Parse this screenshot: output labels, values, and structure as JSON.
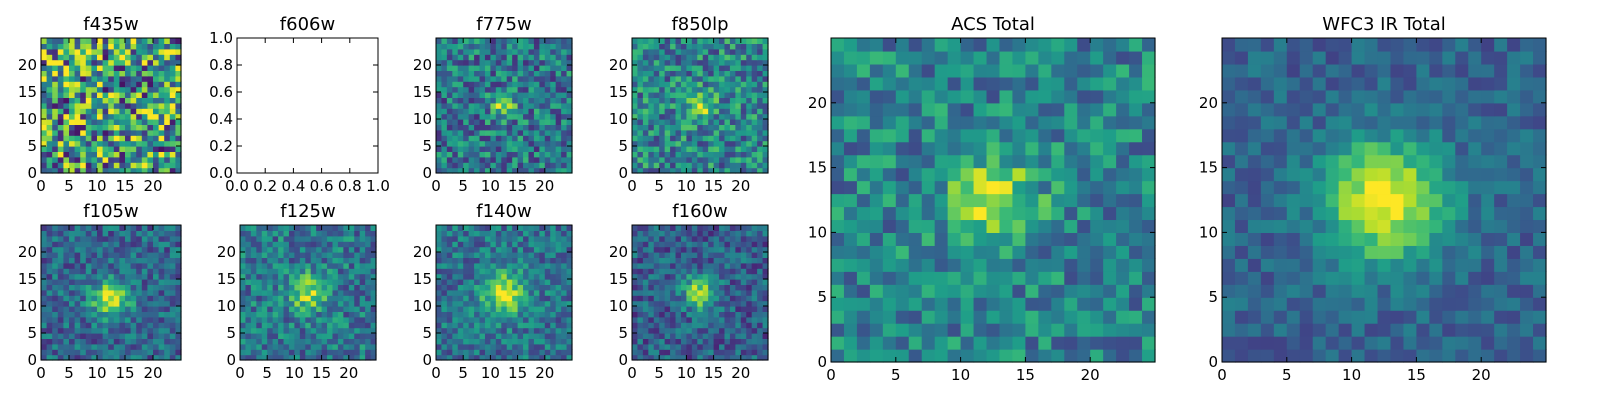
{
  "figure": {
    "background": "#ffffff"
  },
  "chart_data": [
    {
      "type": "heatmap",
      "title": "f435w",
      "xticks": [
        "0",
        "5",
        "10",
        "15",
        "20"
      ],
      "yticks": [
        "0",
        "5",
        "10",
        "15",
        "20"
      ],
      "xlim": [
        0,
        25
      ],
      "ylim": [
        0,
        25
      ],
      "source_center": null,
      "colormap": "viridis"
    },
    {
      "type": "heatmap",
      "title": "f606w",
      "empty": true,
      "xticks": [
        "0.0",
        "0.2",
        "0.4",
        "0.6",
        "0.8",
        "1.0"
      ],
      "yticks": [
        "0.0",
        "0.2",
        "0.4",
        "0.6",
        "0.8",
        "1.0"
      ],
      "xlim": [
        0,
        1
      ],
      "ylim": [
        0,
        1
      ]
    },
    {
      "type": "heatmap",
      "title": "f775w",
      "xticks": [
        "0",
        "5",
        "10",
        "15",
        "20"
      ],
      "yticks": [
        "0",
        "5",
        "10",
        "15",
        "20"
      ],
      "xlim": [
        0,
        25
      ],
      "ylim": [
        0,
        25
      ],
      "source_center": [
        12,
        12
      ],
      "colormap": "viridis"
    },
    {
      "type": "heatmap",
      "title": "f850lp",
      "xticks": [
        "0",
        "5",
        "10",
        "15",
        "20"
      ],
      "yticks": [
        "0",
        "5",
        "10",
        "15",
        "20"
      ],
      "xlim": [
        0,
        25
      ],
      "ylim": [
        0,
        25
      ],
      "source_center": [
        12,
        12
      ],
      "colormap": "viridis"
    },
    {
      "type": "heatmap",
      "title": "f105w",
      "xticks": [
        "0",
        "5",
        "10",
        "15",
        "20"
      ],
      "yticks": [
        "0",
        "5",
        "10",
        "15",
        "20"
      ],
      "xlim": [
        0,
        25
      ],
      "ylim": [
        0,
        25
      ],
      "source_center": [
        12,
        11
      ],
      "colormap": "viridis"
    },
    {
      "type": "heatmap",
      "title": "f125w",
      "xticks": [
        "0",
        "5",
        "10",
        "15",
        "20"
      ],
      "yticks": [
        "0",
        "5",
        "10",
        "15",
        "20"
      ],
      "xlim": [
        0,
        25
      ],
      "ylim": [
        0,
        25
      ],
      "source_center": [
        12,
        12
      ],
      "colormap": "viridis"
    },
    {
      "type": "heatmap",
      "title": "f140w",
      "xticks": [
        "0",
        "5",
        "10",
        "15",
        "20"
      ],
      "yticks": [
        "0",
        "5",
        "10",
        "15",
        "20"
      ],
      "xlim": [
        0,
        25
      ],
      "ylim": [
        0,
        25
      ],
      "source_center": [
        12,
        12
      ],
      "colormap": "viridis"
    },
    {
      "type": "heatmap",
      "title": "f160w",
      "xticks": [
        "0",
        "5",
        "10",
        "15",
        "20"
      ],
      "yticks": [
        "0",
        "5",
        "10",
        "15",
        "20"
      ],
      "xlim": [
        0,
        25
      ],
      "ylim": [
        0,
        25
      ],
      "source_center": [
        12,
        12
      ],
      "colormap": "viridis"
    },
    {
      "type": "heatmap",
      "title": "ACS Total",
      "xticks": [
        "0",
        "5",
        "10",
        "15",
        "20"
      ],
      "yticks": [
        "0",
        "5",
        "10",
        "15",
        "20"
      ],
      "xlim": [
        0,
        25
      ],
      "ylim": [
        0,
        25
      ],
      "source_center": [
        12,
        12
      ],
      "colormap": "viridis"
    },
    {
      "type": "heatmap",
      "title": "WFC3 IR Total",
      "xticks": [
        "0",
        "5",
        "10",
        "15",
        "20"
      ],
      "yticks": [
        "0",
        "5",
        "10",
        "15",
        "20"
      ],
      "xlim": [
        0,
        25
      ],
      "ylim": [
        0,
        25
      ],
      "source_center": [
        12,
        12
      ],
      "colormap": "viridis"
    }
  ]
}
